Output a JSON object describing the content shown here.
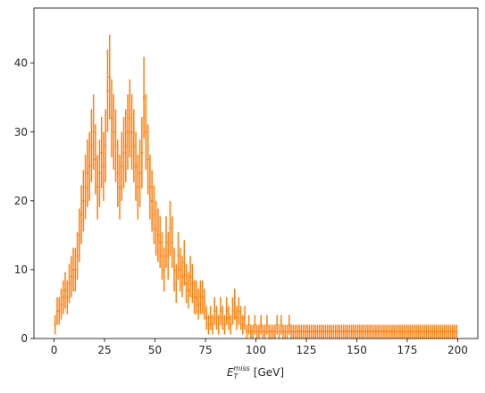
{
  "chart_data": {
    "type": "histogram-errorbar",
    "title": "",
    "xlabel": {
      "base": "E",
      "sub": "T",
      "sup": "miss",
      "unit": "[GeV]"
    },
    "ylabel": "",
    "xlim": [
      -10,
      210
    ],
    "ylim": [
      0,
      48
    ],
    "xticks": [
      0,
      25,
      50,
      75,
      100,
      125,
      150,
      175,
      200
    ],
    "yticks": [
      0,
      10,
      20,
      30,
      40
    ],
    "grid": false,
    "legend": "none",
    "bin_width": 1,
    "x_start": 0,
    "color": "#ff7f0e",
    "values": [
      2,
      4,
      4,
      5,
      6,
      7,
      6,
      8,
      9,
      10,
      10,
      12,
      15,
      18,
      20,
      22,
      24,
      25,
      28,
      30,
      26,
      22,
      24,
      27,
      25,
      28,
      36,
      38,
      32,
      30,
      28,
      24,
      22,
      25,
      27,
      28,
      30,
      32,
      30,
      28,
      25,
      22,
      24,
      27,
      35,
      30,
      26,
      22,
      20,
      18,
      16,
      15,
      14,
      12,
      10,
      14,
      12,
      16,
      14,
      10,
      8,
      12,
      10,
      9,
      11,
      8,
      7,
      9,
      8,
      6,
      6,
      5,
      6,
      6,
      5,
      3,
      2,
      3,
      2,
      4,
      3,
      2,
      4,
      3,
      2,
      4,
      3,
      2,
      4,
      5,
      3,
      4,
      3,
      2,
      3,
      1,
      2,
      1,
      1,
      2,
      1,
      1,
      2,
      1,
      1,
      2,
      1,
      1,
      1,
      1,
      2,
      1,
      2,
      1,
      1,
      1,
      2,
      1,
      1,
      1,
      1,
      1,
      1,
      1,
      1,
      1,
      1,
      1,
      1,
      1,
      1,
      1,
      1,
      1,
      1,
      1,
      1,
      1,
      1,
      1,
      1,
      1,
      1,
      1,
      1,
      1,
      1,
      1,
      1,
      1,
      1,
      1,
      1,
      1,
      1,
      1,
      1,
      1,
      1,
      1,
      1,
      1,
      1,
      1,
      1,
      1,
      1,
      1,
      1,
      1,
      1,
      1,
      1,
      1,
      1,
      1,
      1,
      1,
      1,
      1,
      1,
      1,
      1,
      1,
      1,
      1,
      1,
      1,
      1,
      1,
      1,
      1,
      1,
      1,
      1,
      1,
      1,
      1,
      1,
      1
    ]
  }
}
